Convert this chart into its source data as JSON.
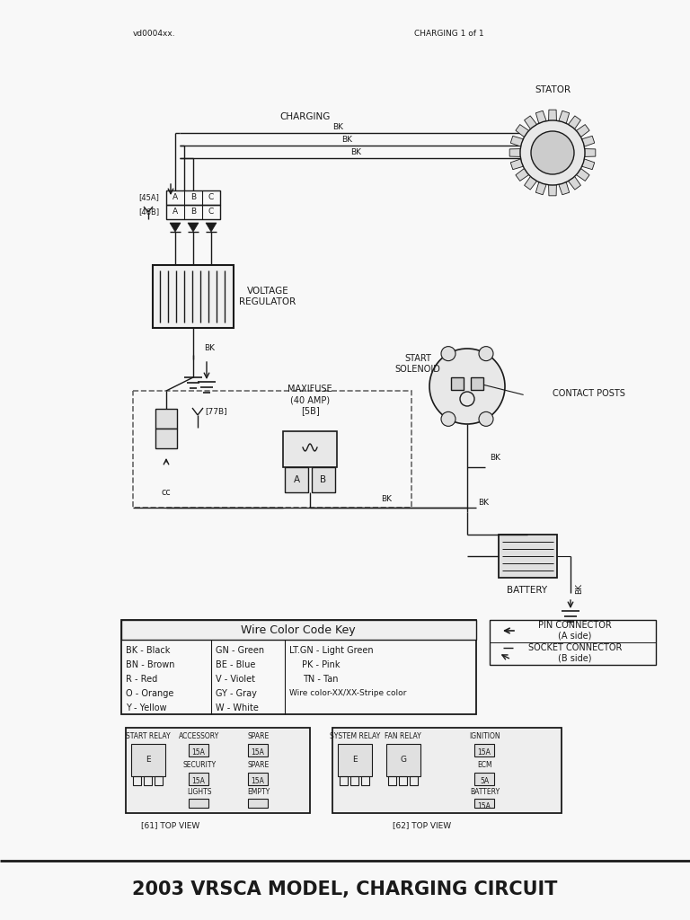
{
  "title": "2003 VRSCA MODEL, CHARGING CIRCUIT",
  "header_left": "vd0004xx.",
  "header_right": "CHARGING 1 of 1",
  "bg_color": "#f8f8f8",
  "line_color": "#1a1a1a",
  "stator_label": "STATOR",
  "charging_label": "CHARGING",
  "voltage_reg_label": "VOLTAGE\nREGULATOR",
  "start_solenoid_label": "START\nSOLENOID",
  "contact_posts_label": "CONTACT POSTS",
  "maxifuse_label": "MAXIFUSE\n(40 AMP)\n[5B]",
  "connector_77b": "[77B]",
  "battery_label": "BATTERY",
  "wire_color_title": "Wire Color Code Key",
  "wire_colors_col1": [
    "BK - Black",
    "BN - Brown",
    "R - Red",
    "O - Orange",
    "Y - Yellow"
  ],
  "wire_colors_col2": [
    "GN - Green",
    "BE - Blue",
    "V - Violet",
    "GY - Gray",
    "W - White"
  ],
  "wire_colors_col3": [
    "LT.GN - Light Green",
    "PK - Pink",
    "TN - Tan",
    "Wire color-XX/XX-Stripe color"
  ],
  "pin_connector_label": "PIN CONNECTOR\n(A side)",
  "socket_connector_label": "SOCKET CONNECTOR\n(B side)",
  "fuse_box_left_label": "[61] TOP VIEW",
  "fuse_box_right_label": "[62] TOP VIEW"
}
